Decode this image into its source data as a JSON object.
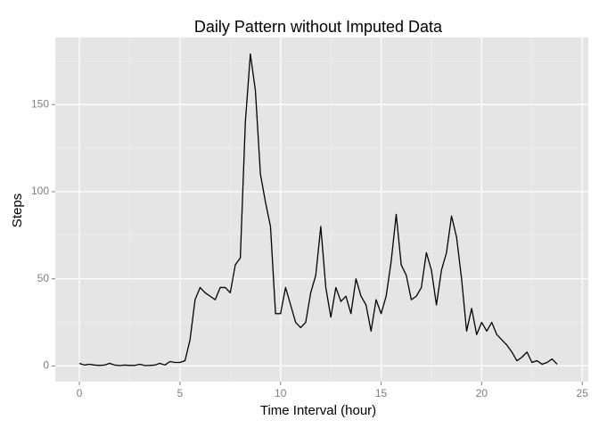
{
  "chart_data": {
    "type": "line",
    "title": "Daily Pattern without Imputed Data",
    "x_label": "Time Interval (hour)",
    "y_label": "Steps",
    "x": [
      0,
      0.25,
      0.5,
      0.75,
      1,
      1.25,
      1.5,
      1.75,
      2,
      2.25,
      2.5,
      2.75,
      3,
      3.25,
      3.5,
      3.75,
      4,
      4.25,
      4.5,
      4.75,
      5,
      5.25,
      5.5,
      5.75,
      6,
      6.25,
      6.5,
      6.75,
      7,
      7.25,
      7.5,
      7.75,
      8,
      8.25,
      8.5,
      8.75,
      9,
      9.25,
      9.5,
      9.75,
      10,
      10.25,
      10.5,
      10.75,
      11,
      11.25,
      11.5,
      11.75,
      12,
      12.25,
      12.5,
      12.75,
      13,
      13.25,
      13.5,
      13.75,
      14,
      14.25,
      14.5,
      14.75,
      15,
      15.25,
      15.5,
      15.75,
      16,
      16.25,
      16.5,
      16.75,
      17,
      17.25,
      17.5,
      17.75,
      18,
      18.25,
      18.5,
      18.75,
      19,
      19.25,
      19.5,
      19.75,
      20,
      20.25,
      20.5,
      20.75,
      21,
      21.25,
      21.5,
      21.75,
      22,
      22.25,
      22.5,
      22.75,
      23,
      23.25,
      23.5,
      23.75
    ],
    "series": [
      {
        "name": "Steps",
        "color": "#000000",
        "values": [
          1.5,
          0.5,
          1,
          0.5,
          0.3,
          0.5,
          1.5,
          0.5,
          0.2,
          0.5,
          0.3,
          0.3,
          1,
          0.2,
          0.3,
          0.5,
          1.5,
          0.5,
          2.5,
          2,
          2,
          3,
          15,
          38,
          45,
          42,
          40,
          38,
          45,
          45,
          42,
          58,
          62,
          140,
          179,
          158,
          110,
          94,
          80,
          30,
          30,
          45,
          35,
          25,
          22,
          25,
          42,
          52,
          80,
          45,
          28,
          45,
          37,
          40,
          30,
          50,
          40,
          35,
          20,
          38,
          30,
          40,
          60,
          87,
          58,
          52,
          38,
          40,
          45,
          65,
          55,
          35,
          55,
          65,
          86,
          74,
          50,
          20,
          33,
          18,
          25,
          20,
          25,
          18,
          15,
          12,
          8,
          3,
          5,
          8,
          2,
          3,
          1,
          2,
          4,
          1
        ]
      }
    ],
    "xlim": [
      -1.2,
      25.3
    ],
    "ylim": [
      -9,
      188.5
    ],
    "xticks": [
      0,
      5,
      10,
      15,
      20,
      25
    ],
    "yticks": [
      0,
      50,
      100,
      150
    ],
    "xminor": [
      2.5,
      7.5,
      12.5,
      17.5,
      22.5
    ],
    "yminor": [
      25,
      75,
      125,
      175
    ],
    "grid": true,
    "panel_color": "#e5e5e5"
  }
}
